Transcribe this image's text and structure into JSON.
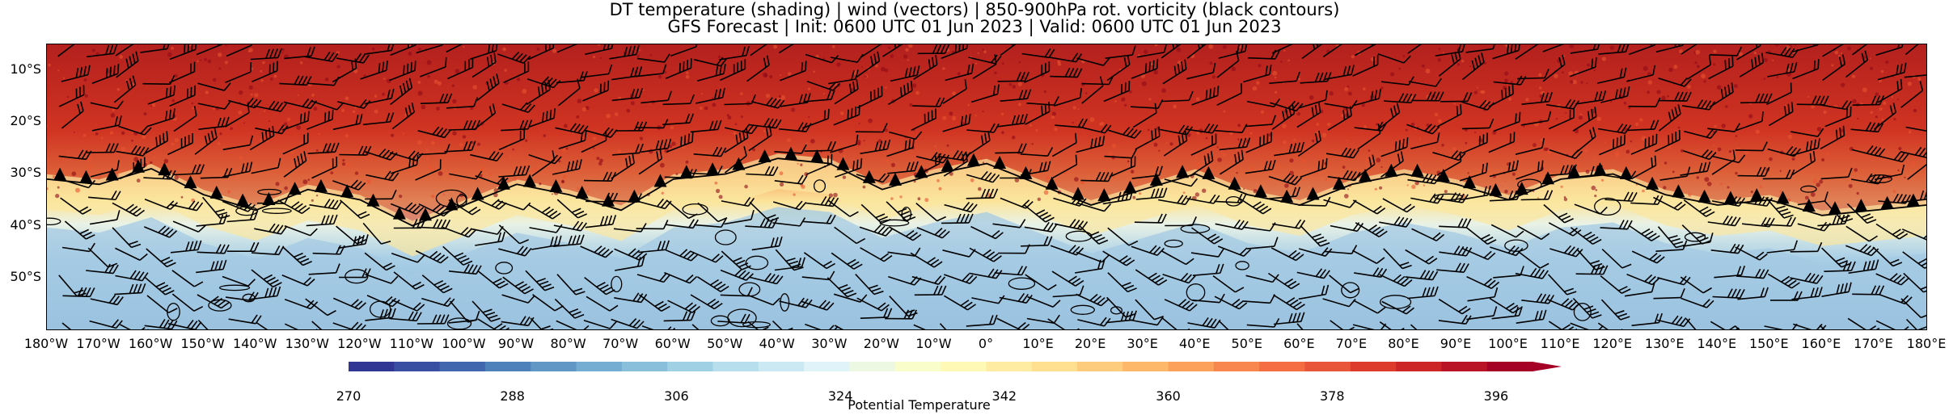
{
  "title": {
    "line1": "DT temperature (shading) | wind (vectors) | 850-900hPa rot. vorticity (black contours)",
    "line2": "GFS Forecast | Init: 0600 UTC 01 Jun 2023 | Valid: 0600 UTC 01 Jun 2023"
  },
  "map": {
    "projection": "plate carree",
    "lon_range": [
      -180,
      180
    ],
    "lat_range": [
      -60,
      -5
    ],
    "lat_labels": [
      {
        "value": -10,
        "text": "10°S"
      },
      {
        "value": -20,
        "text": "20°S"
      },
      {
        "value": -30,
        "text": "30°S"
      },
      {
        "value": -40,
        "text": "40°S"
      },
      {
        "value": -50,
        "text": "50°S"
      }
    ],
    "lon_labels": [
      {
        "value": -180,
        "text": "180°W"
      },
      {
        "value": -170,
        "text": "170°W"
      },
      {
        "value": -160,
        "text": "160°W"
      },
      {
        "value": -150,
        "text": "150°W"
      },
      {
        "value": -140,
        "text": "140°W"
      },
      {
        "value": -130,
        "text": "130°W"
      },
      {
        "value": -120,
        "text": "120°W"
      },
      {
        "value": -110,
        "text": "110°W"
      },
      {
        "value": -100,
        "text": "100°W"
      },
      {
        "value": -90,
        "text": "90°W"
      },
      {
        "value": -80,
        "text": "80°W"
      },
      {
        "value": -70,
        "text": "70°W"
      },
      {
        "value": -60,
        "text": "60°W"
      },
      {
        "value": -50,
        "text": "50°W"
      },
      {
        "value": -40,
        "text": "40°W"
      },
      {
        "value": -30,
        "text": "30°W"
      },
      {
        "value": -20,
        "text": "20°W"
      },
      {
        "value": -10,
        "text": "10°W"
      },
      {
        "value": 0,
        "text": "0°"
      },
      {
        "value": 10,
        "text": "10°E"
      },
      {
        "value": 20,
        "text": "20°E"
      },
      {
        "value": 30,
        "text": "30°E"
      },
      {
        "value": 40,
        "text": "40°E"
      },
      {
        "value": 50,
        "text": "50°E"
      },
      {
        "value": 60,
        "text": "60°E"
      },
      {
        "value": 70,
        "text": "70°E"
      },
      {
        "value": 80,
        "text": "80°E"
      },
      {
        "value": 90,
        "text": "90°E"
      },
      {
        "value": 100,
        "text": "100°E"
      },
      {
        "value": 110,
        "text": "110°E"
      },
      {
        "value": 120,
        "text": "120°E"
      },
      {
        "value": 130,
        "text": "130°E"
      },
      {
        "value": 140,
        "text": "140°E"
      },
      {
        "value": 150,
        "text": "150°E"
      },
      {
        "value": 160,
        "text": "160°E"
      },
      {
        "value": 170,
        "text": "170°E"
      },
      {
        "value": 180,
        "text": "180°E"
      }
    ],
    "boundary_lat": [
      -31,
      -32,
      -29,
      -34,
      -37,
      -33,
      -35,
      -40,
      -36,
      -32,
      -34,
      -37,
      -31,
      -30,
      -27,
      -28,
      -33,
      -30,
      -28,
      -32,
      -36,
      -33,
      -30,
      -34,
      -36,
      -32,
      -30,
      -32,
      -35,
      -31,
      -30,
      -34,
      -36,
      -35,
      -38,
      -37,
      -36
    ],
    "cold_lat": -40,
    "warm_lat": -25
  },
  "colorbar": {
    "label": "Potential Temperature",
    "min": 270,
    "max": 400,
    "ticks": [
      {
        "value": 270,
        "text": "270"
      },
      {
        "value": 288,
        "text": "288"
      },
      {
        "value": 306,
        "text": "306"
      },
      {
        "value": 324,
        "text": "324"
      },
      {
        "value": 342,
        "text": "342"
      },
      {
        "value": 360,
        "text": "360"
      },
      {
        "value": 378,
        "text": "378"
      },
      {
        "value": 396,
        "text": "396"
      }
    ],
    "colors": [
      "#313695",
      "#4575b4",
      "#74add1",
      "#abd9e9",
      "#e0f3f8",
      "#ffffbf",
      "#fee090",
      "#fdae61",
      "#f46d43",
      "#d73027",
      "#a50026"
    ],
    "extend": "max"
  }
}
